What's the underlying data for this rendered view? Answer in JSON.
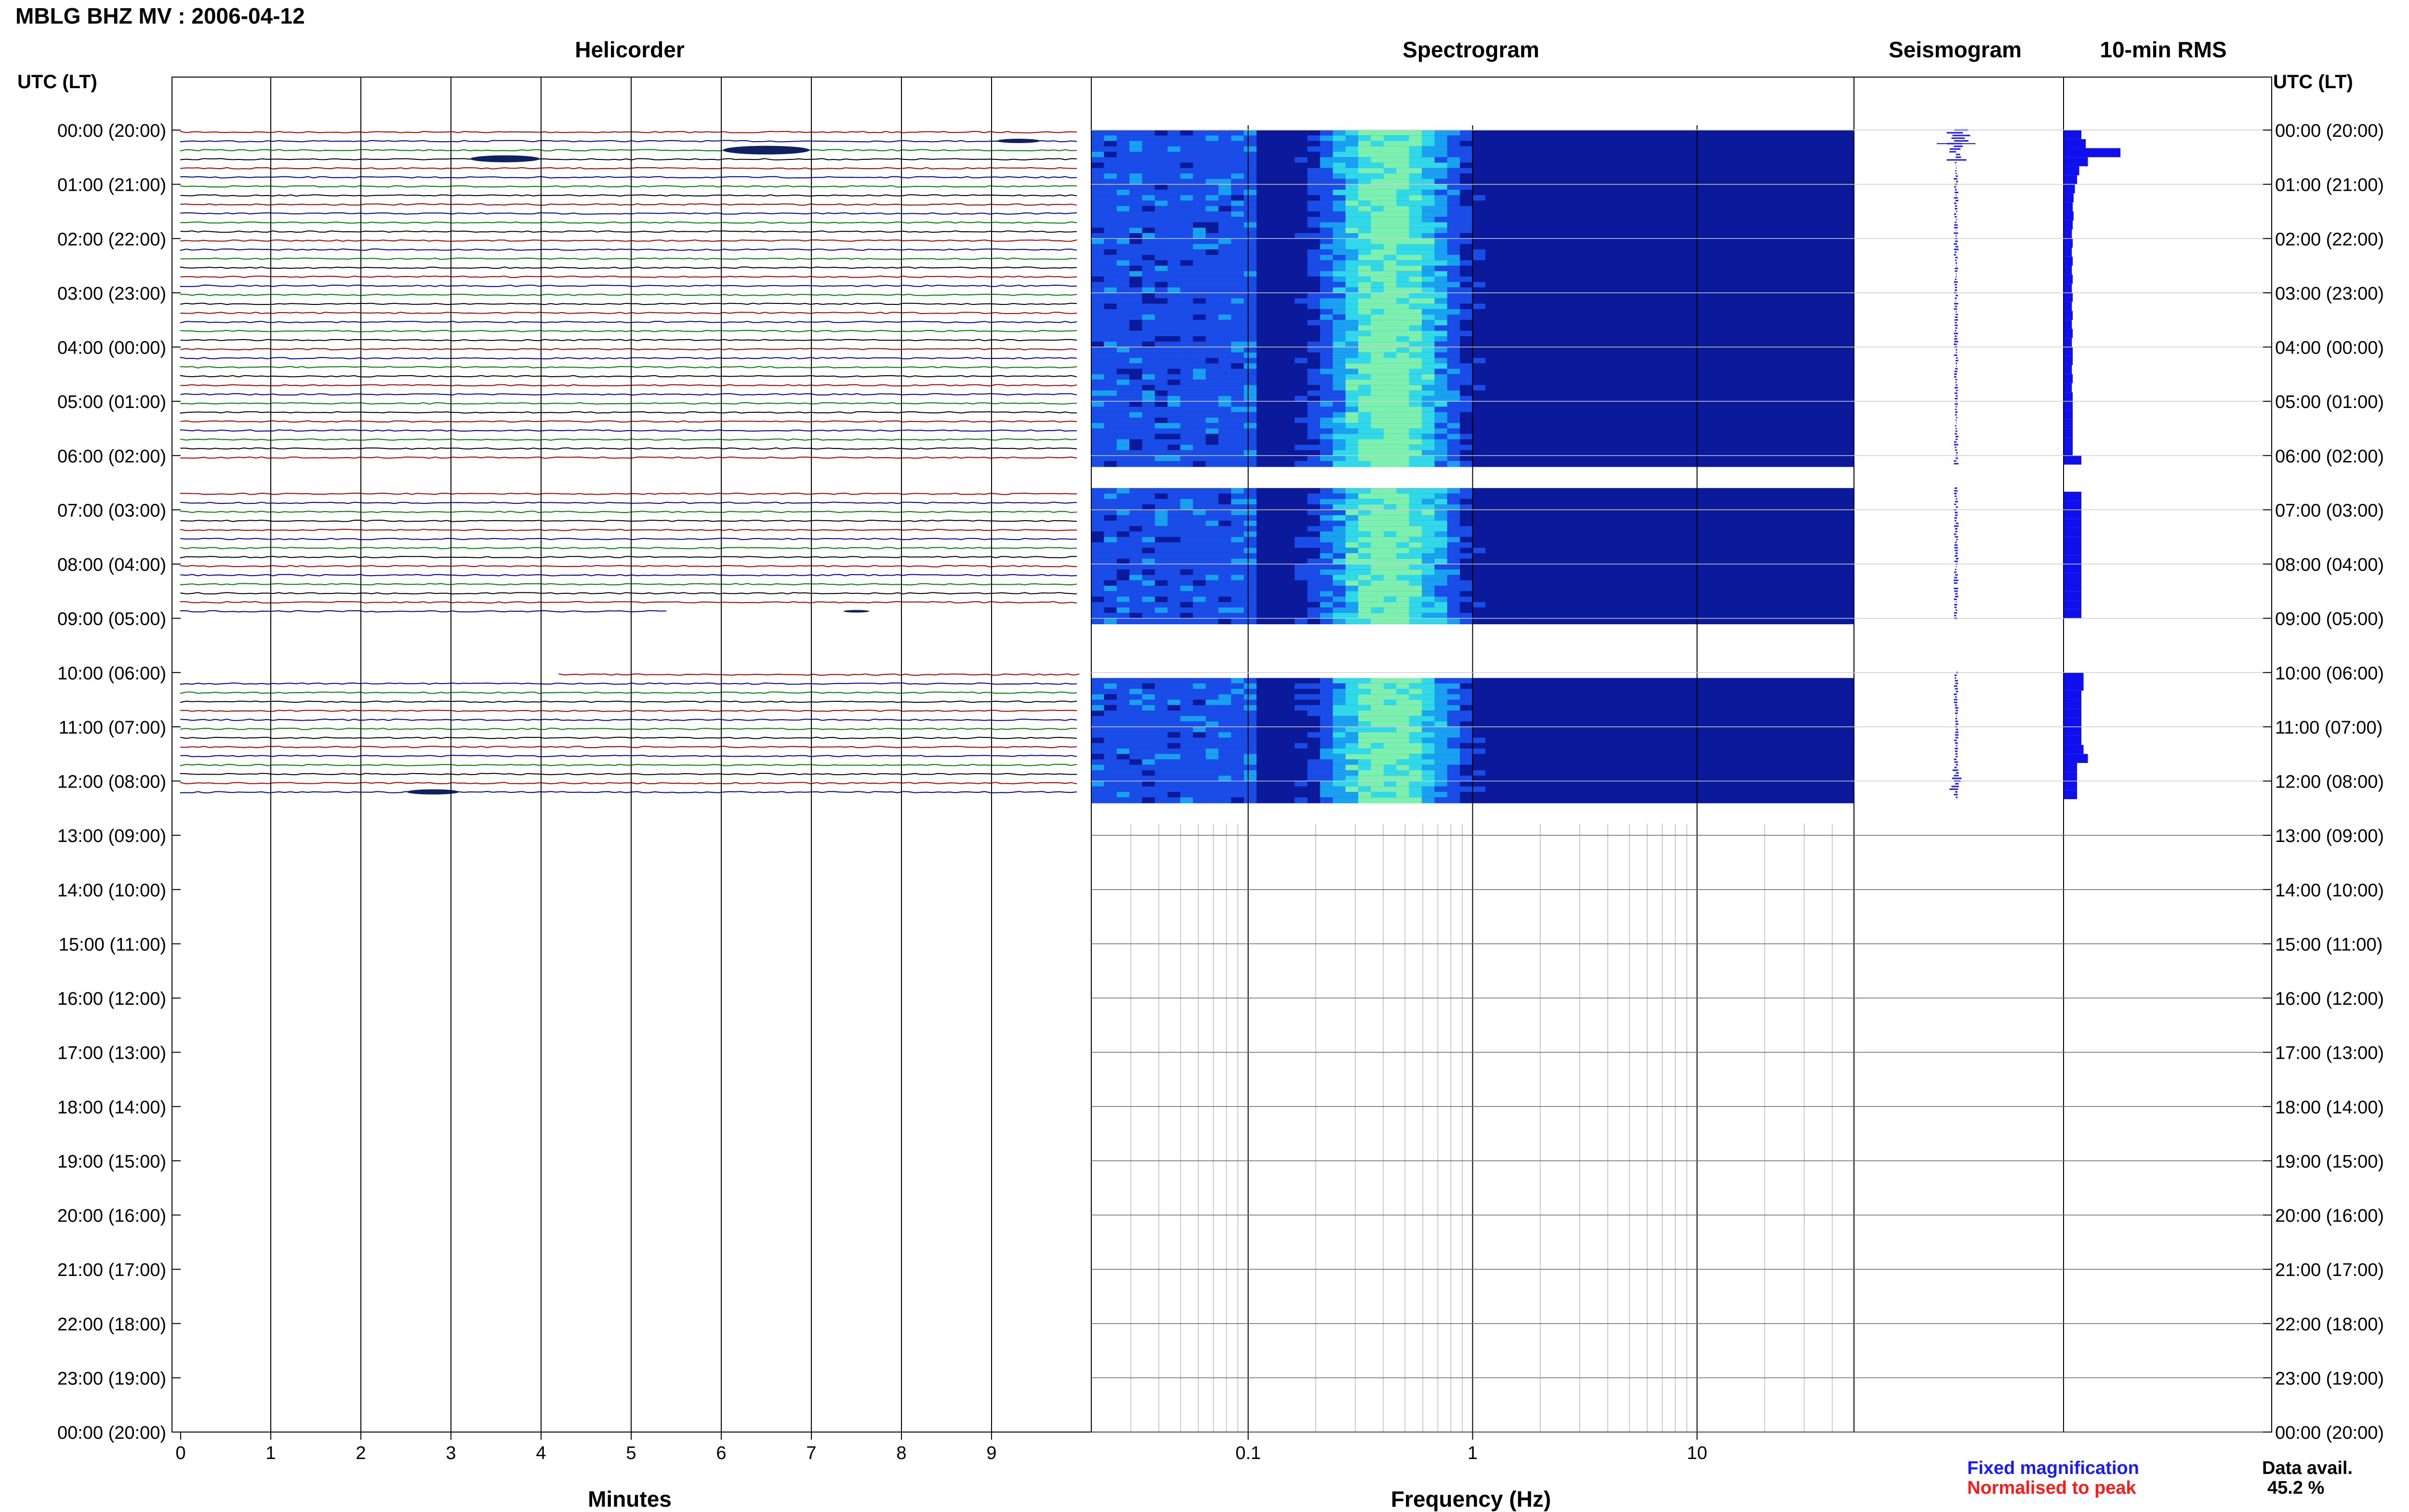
{
  "header": {
    "title": "MBLG BHZ MV : 2006-04-12",
    "left_axis_label": "UTC (LT)",
    "right_axis_label": "UTC (LT)"
  },
  "panels": {
    "helicorder": "Helicorder",
    "spectrogram": "Spectrogram",
    "seismogram": "Seismogram",
    "rms": "10-min RMS"
  },
  "footer": {
    "minutes_label": "Minutes",
    "frequency_label": "Frequency (Hz)",
    "legend_fixed": "Fixed magnification",
    "legend_normalised": "Normalised to peak",
    "data_avail_label": "Data avail.",
    "data_avail_value": "45.2 %"
  },
  "colors": {
    "trace_cycle": [
      "#b00000",
      "#0000b0",
      "#008000",
      "#000000"
    ],
    "fixed": "#1a1aff",
    "normalised": "#ff1a1a",
    "rms_bar": "#1010ee",
    "spectrogram_base": "#0a1a9a"
  },
  "chart_data": {
    "type": "helicorder",
    "time_labels": [
      "00:00 (20:00)",
      "01:00 (21:00)",
      "02:00 (22:00)",
      "03:00 (23:00)",
      "04:00 (00:00)",
      "05:00 (01:00)",
      "06:00 (02:00)",
      "07:00 (03:00)",
      "08:00 (04:00)",
      "09:00 (05:00)",
      "10:00 (06:00)",
      "11:00 (07:00)",
      "12:00 (08:00)",
      "13:00 (09:00)",
      "14:00 (10:00)",
      "15:00 (11:00)",
      "16:00 (12:00)",
      "17:00 (13:00)",
      "18:00 (14:00)",
      "19:00 (15:00)",
      "20:00 (16:00)",
      "21:00 (17:00)",
      "22:00 (18:00)",
      "23:00 (19:00)",
      "00:00 (20:00)"
    ],
    "minute_ticks": [
      "0",
      "1",
      "2",
      "3",
      "4",
      "5",
      "6",
      "7",
      "8",
      "9"
    ],
    "minute_range": [
      0,
      10
    ],
    "frequency_ticks": [
      {
        "value": 0.1,
        "label": "0.1"
      },
      {
        "value": 1,
        "label": "1"
      },
      {
        "value": 10,
        "label": "10"
      }
    ],
    "frequency_range": [
      0.02,
      50
    ],
    "frequency_scale": "log",
    "hours_range": [
      0,
      24
    ],
    "data_gaps_hours": [
      [
        6.17,
        6.58
      ],
      [
        9.0,
        10.0
      ]
    ],
    "data_end_hour": 12.33,
    "partial_trace_hour_10_start_min": 4.2,
    "partial_trace_hour_9_end_min": 5.4,
    "events": [
      {
        "hour": 0.17,
        "minute": 6.5,
        "amplitude": 1.0
      },
      {
        "hour": 0.33,
        "minute": 3.6,
        "amplitude": 0.8
      },
      {
        "hour": 0.0,
        "minute": 9.3,
        "amplitude": 0.5
      },
      {
        "hour": 12.0,
        "minute": 2.8,
        "amplitude": 0.6
      },
      {
        "hour": 8.67,
        "minute": 7.5,
        "amplitude": 0.3
      }
    ],
    "rms_10min": [
      0.4,
      0.5,
      1.3,
      0.55,
      0.35,
      0.3,
      0.25,
      0.22,
      0.2,
      0.22,
      0.2,
      0.18,
      0.2,
      0.18,
      0.2,
      0.18,
      0.2,
      0.18,
      0.2,
      0.18,
      0.2,
      0.18,
      0.2,
      0.18,
      0.2,
      0.2,
      0.18,
      0.2,
      0.18,
      0.2,
      0.2,
      0.2,
      0.2,
      0.2,
      0.2,
      0.2,
      0.4,
      0.4,
      0.4,
      0.4,
      0.4,
      0.4,
      0.4,
      0.4,
      0.4,
      0.4,
      0.4,
      0.4,
      0.4,
      0.4,
      0.4,
      0.4,
      0.4,
      0.4,
      0.4,
      0.4,
      0.4,
      0.4,
      0.4,
      0.4,
      0.45,
      0.45,
      0.4,
      0.4,
      0.4,
      0.4,
      0.4,
      0.4,
      0.45,
      0.55,
      0.3,
      0.3,
      0.3,
      0.3
    ],
    "grid": true
  }
}
